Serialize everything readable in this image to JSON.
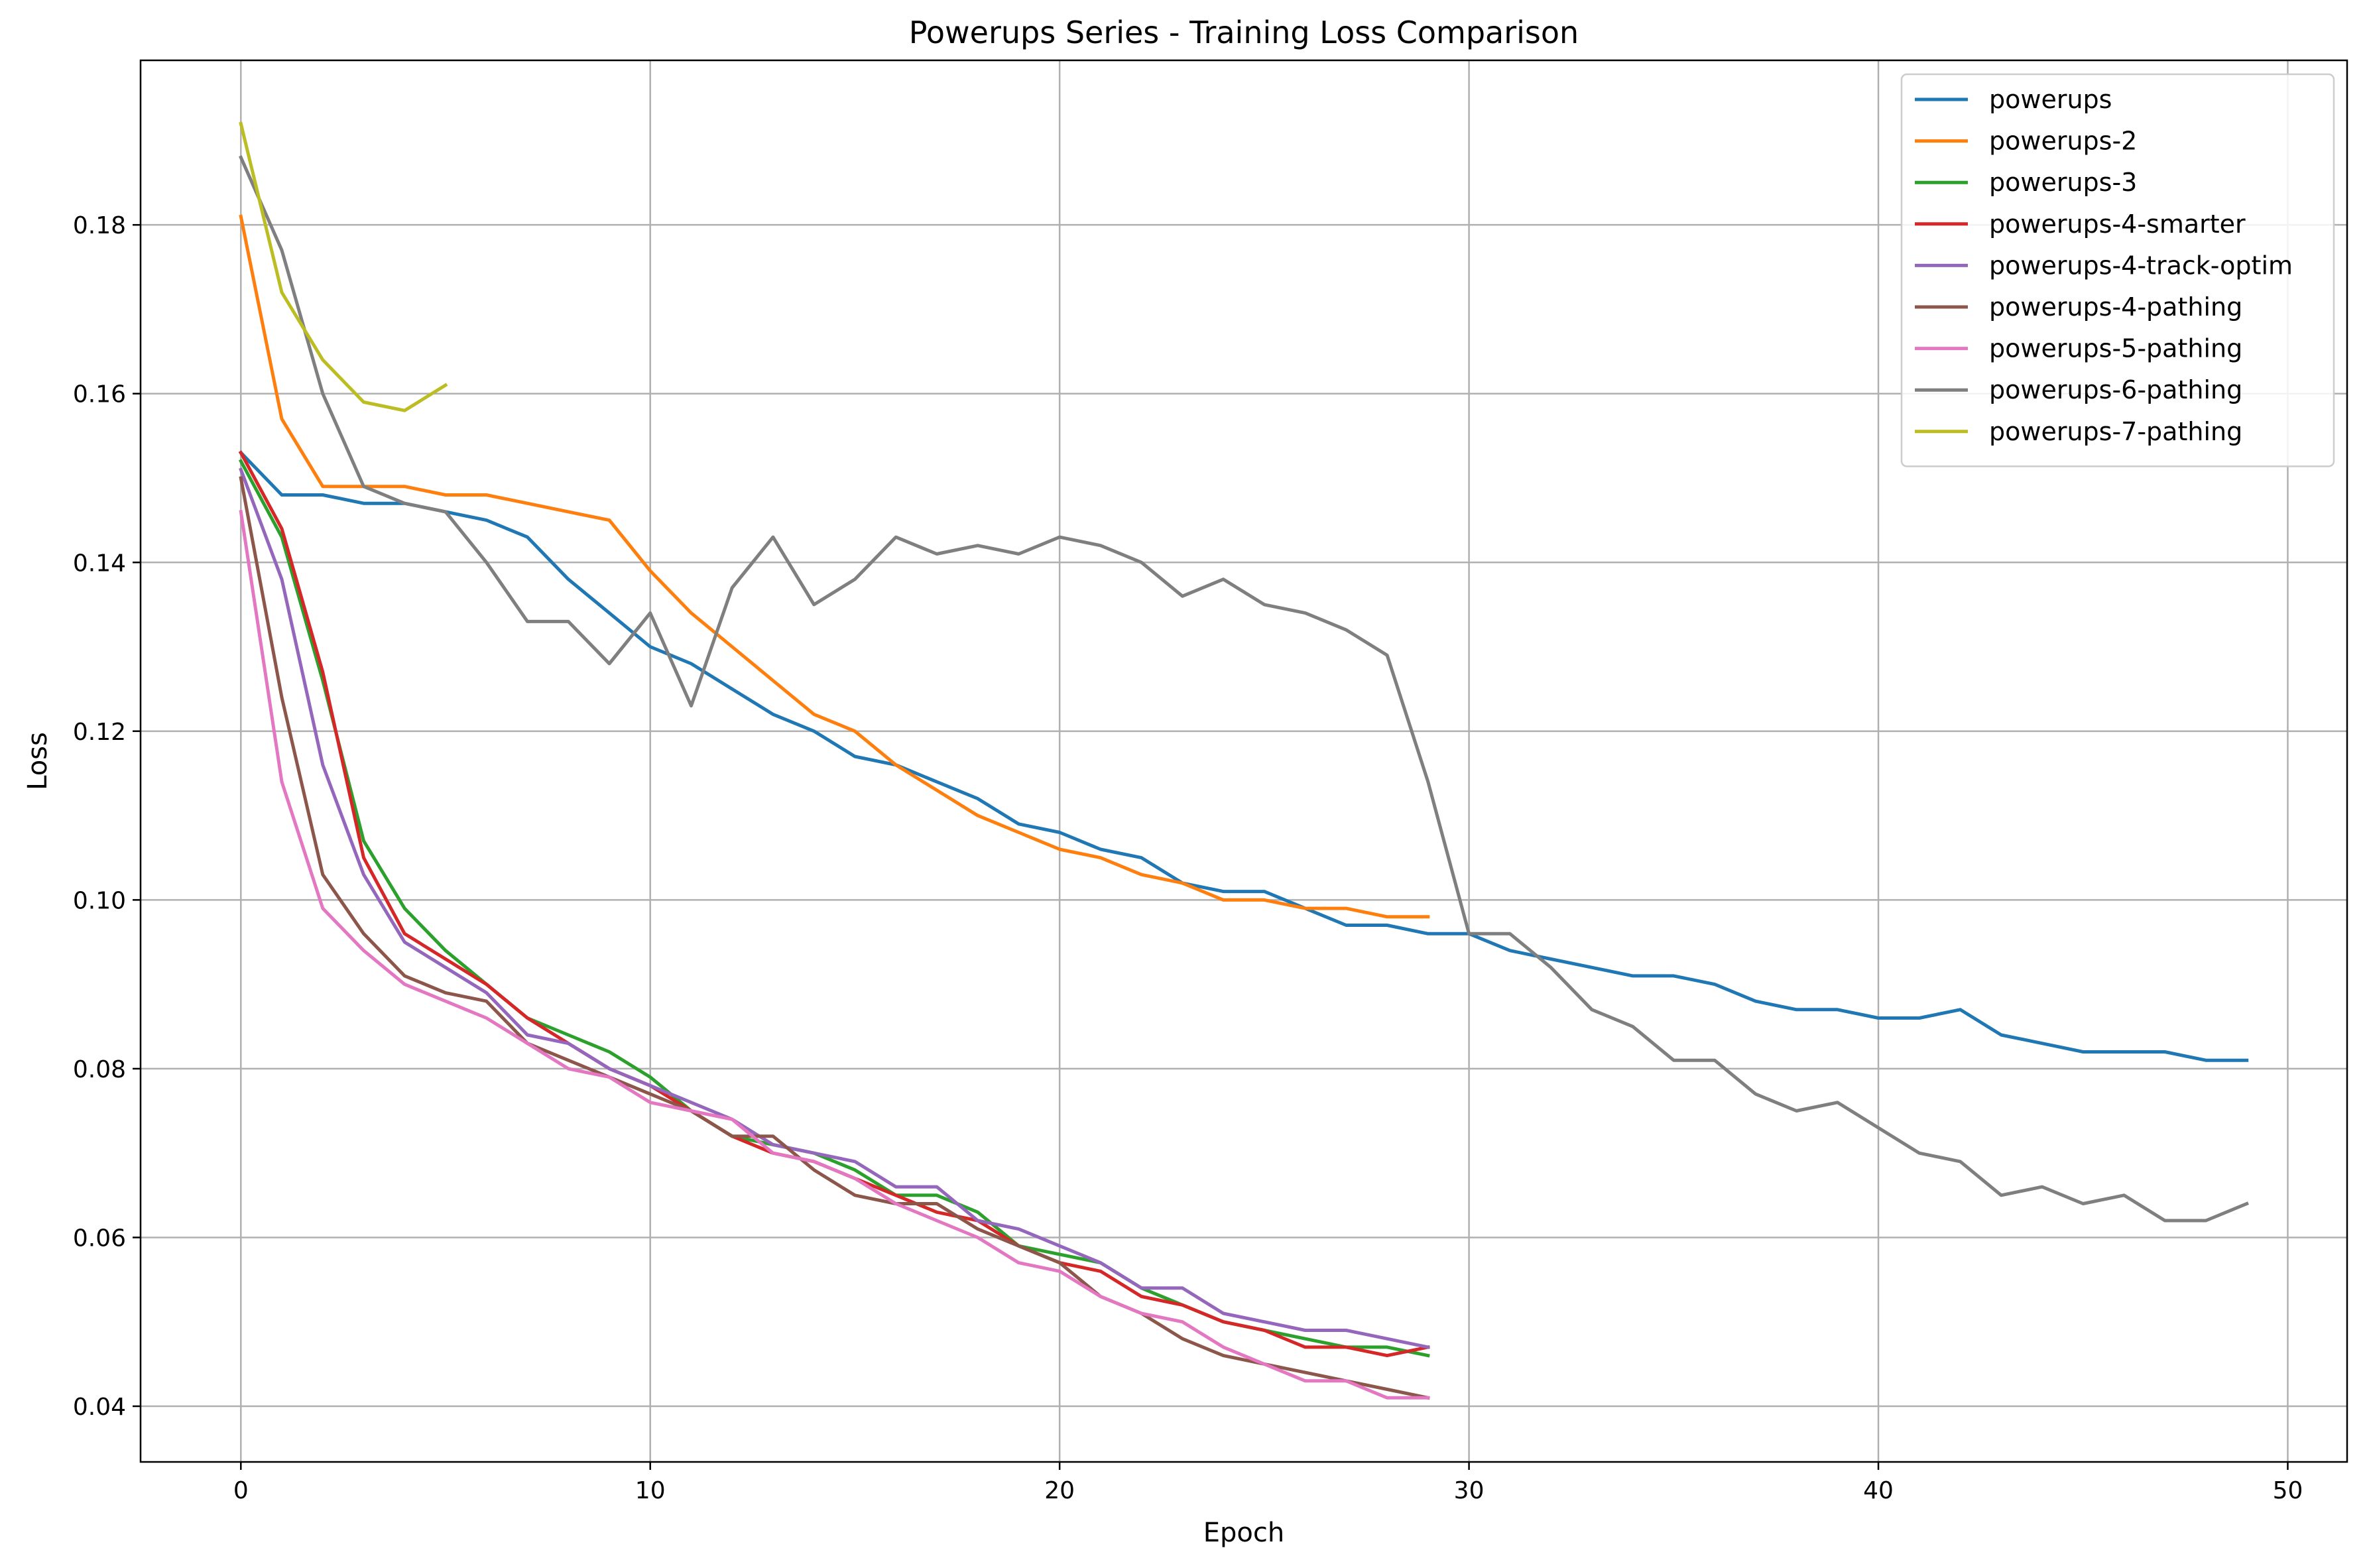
{
  "chart_data": {
    "type": "line",
    "title": "Powerups Series - Training Loss Comparison",
    "xlabel": "Epoch",
    "ylabel": "Loss",
    "xlim": [
      -2.45,
      51.45
    ],
    "ylim": [
      0.0334,
      0.1995
    ],
    "xticks": [
      0,
      10,
      20,
      30,
      40,
      50
    ],
    "yticks": [
      0.04,
      0.06,
      0.08,
      0.1,
      0.12,
      0.14,
      0.16,
      0.18
    ],
    "ytick_labels": [
      "0.04",
      "0.06",
      "0.08",
      "0.10",
      "0.12",
      "0.14",
      "0.16",
      "0.18"
    ],
    "grid": true,
    "legend_position": "top-right",
    "series": [
      {
        "name": "powerups",
        "color": "#1f77b4",
        "values": [
          0.153,
          0.148,
          0.148,
          0.147,
          0.147,
          0.146,
          0.145,
          0.143,
          0.138,
          0.134,
          0.13,
          0.128,
          0.125,
          0.122,
          0.12,
          0.117,
          0.116,
          0.114,
          0.112,
          0.109,
          0.108,
          0.106,
          0.105,
          0.102,
          0.101,
          0.101,
          0.099,
          0.097,
          0.097,
          0.096,
          0.096,
          0.094,
          0.093,
          0.092,
          0.091,
          0.091,
          0.09,
          0.088,
          0.087,
          0.087,
          0.086,
          0.086,
          0.087,
          0.084,
          0.083,
          0.082,
          0.082,
          0.082,
          0.081,
          0.081
        ]
      },
      {
        "name": "powerups-2",
        "color": "#ff7f0e",
        "values": [
          0.181,
          0.157,
          0.149,
          0.149,
          0.149,
          0.148,
          0.148,
          0.147,
          0.146,
          0.145,
          0.139,
          0.134,
          0.13,
          0.126,
          0.122,
          0.12,
          0.116,
          0.113,
          0.11,
          0.108,
          0.106,
          0.105,
          0.103,
          0.102,
          0.1,
          0.1,
          0.099,
          0.099,
          0.098,
          0.098
        ]
      },
      {
        "name": "powerups-3",
        "color": "#2ca02c",
        "values": [
          0.152,
          0.143,
          0.126,
          0.107,
          0.099,
          0.094,
          0.09,
          0.086,
          0.084,
          0.082,
          0.079,
          0.075,
          0.072,
          0.071,
          0.07,
          0.068,
          0.065,
          0.065,
          0.063,
          0.059,
          0.058,
          0.057,
          0.054,
          0.052,
          0.05,
          0.049,
          0.048,
          0.047,
          0.047,
          0.046
        ]
      },
      {
        "name": "powerups-4-smarter",
        "color": "#d62728",
        "values": [
          0.153,
          0.144,
          0.127,
          0.105,
          0.096,
          0.093,
          0.09,
          0.086,
          0.083,
          0.08,
          0.078,
          0.075,
          0.072,
          0.07,
          0.069,
          0.067,
          0.065,
          0.063,
          0.062,
          0.059,
          0.057,
          0.056,
          0.053,
          0.052,
          0.05,
          0.049,
          0.047,
          0.047,
          0.046,
          0.047
        ]
      },
      {
        "name": "powerups-4-track-optim",
        "color": "#9467bd",
        "values": [
          0.151,
          0.138,
          0.116,
          0.103,
          0.095,
          0.092,
          0.089,
          0.084,
          0.083,
          0.08,
          0.078,
          0.076,
          0.074,
          0.071,
          0.07,
          0.069,
          0.066,
          0.066,
          0.062,
          0.061,
          0.059,
          0.057,
          0.054,
          0.054,
          0.051,
          0.05,
          0.049,
          0.049,
          0.048,
          0.047
        ]
      },
      {
        "name": "powerups-4-pathing",
        "color": "#8c564b",
        "values": [
          0.15,
          0.124,
          0.103,
          0.096,
          0.091,
          0.089,
          0.088,
          0.083,
          0.081,
          0.079,
          0.077,
          0.075,
          0.072,
          0.072,
          0.068,
          0.065,
          0.064,
          0.064,
          0.061,
          0.059,
          0.057,
          0.053,
          0.051,
          0.048,
          0.046,
          0.045,
          0.044,
          0.043,
          0.042,
          0.041
        ]
      },
      {
        "name": "powerups-5-pathing",
        "color": "#e377c2",
        "values": [
          0.146,
          0.114,
          0.099,
          0.094,
          0.09,
          0.088,
          0.086,
          0.083,
          0.08,
          0.079,
          0.076,
          0.075,
          0.074,
          0.07,
          0.069,
          0.067,
          0.064,
          0.062,
          0.06,
          0.057,
          0.056,
          0.053,
          0.051,
          0.05,
          0.047,
          0.045,
          0.043,
          0.043,
          0.041,
          0.041
        ]
      },
      {
        "name": "powerups-6-pathing",
        "color": "#7f7f7f",
        "values": [
          0.188,
          0.177,
          0.16,
          0.149,
          0.147,
          0.146,
          0.14,
          0.133,
          0.133,
          0.128,
          0.134,
          0.123,
          0.137,
          0.143,
          0.135,
          0.138,
          0.143,
          0.141,
          0.142,
          0.141,
          0.143,
          0.142,
          0.14,
          0.136,
          0.138,
          0.135,
          0.134,
          0.132,
          0.129,
          0.114,
          0.096,
          0.096,
          0.092,
          0.087,
          0.085,
          0.081,
          0.081,
          0.077,
          0.075,
          0.076,
          0.073,
          0.07,
          0.069,
          0.065,
          0.066,
          0.064,
          0.065,
          0.062,
          0.062,
          0.064
        ]
      },
      {
        "name": "powerups-7-pathing",
        "color": "#bcbd22",
        "values": [
          0.192,
          0.172,
          0.164,
          0.159,
          0.158,
          0.161
        ]
      }
    ]
  }
}
